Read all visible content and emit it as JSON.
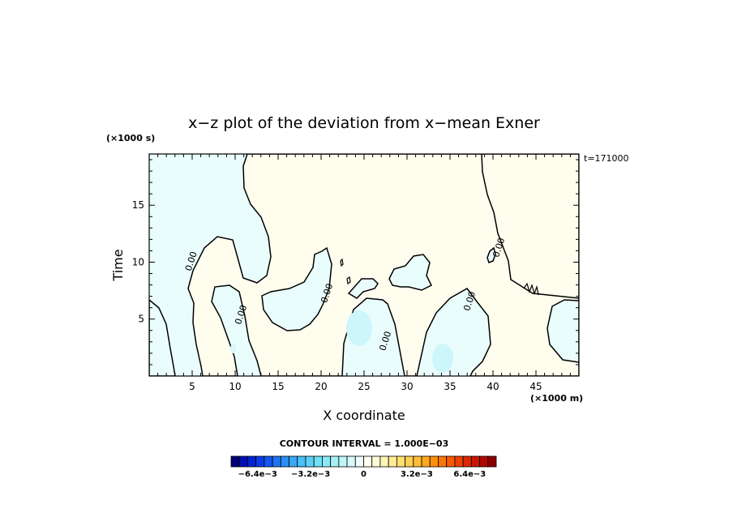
{
  "chart_data": {
    "type": "contour",
    "title": "x−z plot of the deviation from x−mean Exner",
    "xlabel": "X coordinate",
    "ylabel": "Time",
    "x_unit": "(×1000 m)",
    "y_unit": "(×1000 s)",
    "time_stamp": "t=171000",
    "xlim": [
      0,
      50
    ],
    "ylim": [
      0,
      19.5
    ],
    "x_ticks": [
      5,
      10,
      15,
      20,
      25,
      30,
      35,
      40,
      45
    ],
    "y_ticks": [
      5,
      10,
      15
    ],
    "contour_interval_text": "CONTOUR INTERVAL = 1.000E−03",
    "contour_labels": [
      {
        "text": "0.00",
        "x": 5.2,
        "y": 10.0
      },
      {
        "text": "0.00",
        "x": 11.0,
        "y": 5.3
      },
      {
        "text": "0.00",
        "x": 21.0,
        "y": 7.2
      },
      {
        "text": "0.00",
        "x": 27.8,
        "y": 3.0
      },
      {
        "text": "0.00",
        "x": 37.6,
        "y": 6.5
      },
      {
        "text": "0.00",
        "x": 41.0,
        "y": 11.2
      }
    ],
    "regions": [
      {
        "name": "negative",
        "color": "#eafdfd"
      },
      {
        "name": "positive",
        "color": "#fffdee"
      }
    ],
    "colorbar": {
      "min": -0.008,
      "max": 0.008,
      "tick_labels": [
        "−6.4e−3",
        "−3.2e−3",
        "0",
        "3.2e−3",
        "6.4e−3"
      ],
      "tick_values": [
        -0.0064,
        -0.0032,
        0,
        0.0032,
        0.0064
      ],
      "colors": [
        "#00007a",
        "#0010b4",
        "#0024d6",
        "#0a3ce8",
        "#1458f0",
        "#1e74f4",
        "#2a8ef6",
        "#3aa8f8",
        "#4cbff8",
        "#5ed2f6",
        "#72e0f4",
        "#8aeaf4",
        "#a4f0f6",
        "#bef5f8",
        "#d6f9fa",
        "#eefcfc",
        "#fffff0",
        "#fffbd8",
        "#fff5b8",
        "#ffed96",
        "#ffe072",
        "#ffd050",
        "#ffbd34",
        "#ffa81c",
        "#ff900e",
        "#ff7608",
        "#f85a04",
        "#ec4002",
        "#dc2800",
        "#c81400",
        "#b00800",
        "#8c0000"
      ]
    }
  }
}
